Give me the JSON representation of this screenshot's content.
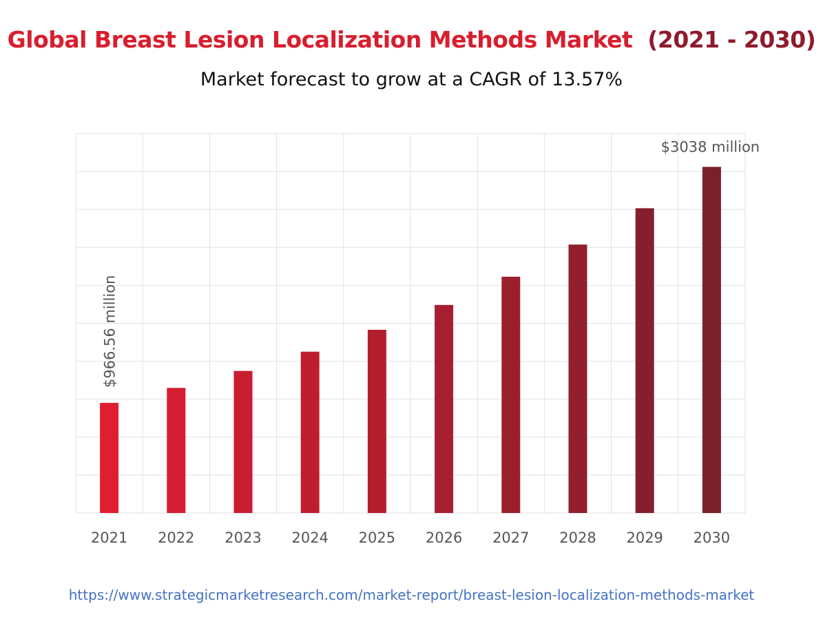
{
  "header": {
    "title_main": "Global Breast Lesion Localization Methods Market",
    "title_years": "(2021 - 2030)",
    "subtitle": "Market forecast to grow at a CAGR of 13.57%"
  },
  "colors": {
    "title_main": "#d81e2e",
    "title_years": "#8e1b2c",
    "bar_start": "#e01e32",
    "bar_end": "#7a1f2c",
    "grid": "#e2e2e2",
    "text": "#555555",
    "link": "#4472c4"
  },
  "chart_data": {
    "type": "bar",
    "categories": [
      "2021",
      "2022",
      "2023",
      "2024",
      "2025",
      "2026",
      "2027",
      "2028",
      "2029",
      "2030"
    ],
    "values": [
      966.56,
      1098,
      1247,
      1416,
      1608,
      1826,
      2074,
      2356,
      2675,
      3038
    ],
    "data_labels": [
      {
        "index": 0,
        "text": "$966.56 million",
        "orientation": "vertical"
      },
      {
        "index": 9,
        "text": "$3038 million",
        "orientation": "horizontal"
      }
    ],
    "ylim": [
      0,
      3330
    ],
    "grid": true,
    "legend": "none"
  },
  "footer": {
    "source_url": "https://www.strategicmarketresearch.com/market-report/breast-lesion-localization-methods-market"
  }
}
